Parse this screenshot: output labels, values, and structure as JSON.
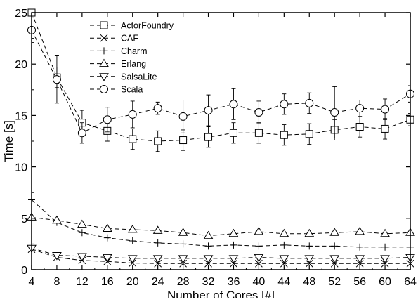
{
  "chart_data": {
    "type": "line",
    "title": "",
    "xlabel": "Number of Cores [#]",
    "ylabel": "Time [s]",
    "xlim": [
      4,
      64
    ],
    "ylim": [
      0,
      25
    ],
    "x": [
      4,
      8,
      12,
      16,
      20,
      24,
      28,
      32,
      36,
      40,
      44,
      48,
      52,
      56,
      60,
      64
    ],
    "xticks": [
      4,
      8,
      12,
      16,
      20,
      24,
      28,
      32,
      36,
      40,
      44,
      48,
      52,
      56,
      60,
      64
    ],
    "yticks": [
      0,
      5,
      10,
      15,
      20,
      25
    ],
    "grid": false,
    "legend_position": "top-left",
    "series": [
      {
        "name": "ActorFoundry",
        "marker": "square",
        "values": [
          25.0,
          18.7,
          14.3,
          13.5,
          12.7,
          12.5,
          12.6,
          12.9,
          13.3,
          13.3,
          13.1,
          13.2,
          13.6,
          13.9,
          13.7,
          14.6
        ],
        "errors": [
          0.0,
          1.0,
          1.2,
          1.0,
          1.0,
          1.0,
          1.0,
          1.0,
          1.0,
          1.0,
          1.0,
          1.0,
          1.0,
          1.0,
          1.0,
          0.6
        ]
      },
      {
        "name": "CAF",
        "marker": "x",
        "values": [
          2.0,
          1.2,
          0.9,
          0.8,
          0.65,
          0.6,
          0.6,
          0.6,
          0.6,
          0.6,
          0.6,
          0.6,
          0.6,
          0.6,
          0.6,
          0.6
        ],
        "errors": []
      },
      {
        "name": "Charm",
        "marker": "plus",
        "values": [
          6.8,
          4.6,
          3.6,
          3.1,
          2.8,
          2.6,
          2.5,
          2.3,
          2.4,
          2.3,
          2.4,
          2.3,
          2.3,
          2.2,
          2.2,
          2.2
        ],
        "errors": []
      },
      {
        "name": "Erlang",
        "marker": "triangle-up",
        "values": [
          5.1,
          4.8,
          4.4,
          4.0,
          3.9,
          3.8,
          3.6,
          3.3,
          3.5,
          3.7,
          3.5,
          3.5,
          3.6,
          3.7,
          3.5,
          3.6
        ],
        "errors": []
      },
      {
        "name": "SalsaLite",
        "marker": "triangle-down",
        "values": [
          2.1,
          1.4,
          1.3,
          1.2,
          1.1,
          1.1,
          1.1,
          1.1,
          1.1,
          1.2,
          1.1,
          1.1,
          1.1,
          1.1,
          1.1,
          1.2
        ],
        "errors": []
      },
      {
        "name": "Scala",
        "marker": "circle",
        "values": [
          23.3,
          18.5,
          13.3,
          14.6,
          15.1,
          15.7,
          14.9,
          15.5,
          16.1,
          15.3,
          16.1,
          16.2,
          15.3,
          15.7,
          15.6,
          17.1
        ],
        "errors": [
          1.2,
          2.3,
          1.0,
          1.2,
          1.3,
          0.6,
          1.6,
          1.5,
          1.5,
          1.1,
          1.0,
          1.0,
          2.5,
          0.8,
          1.0,
          0.8
        ]
      }
    ]
  }
}
